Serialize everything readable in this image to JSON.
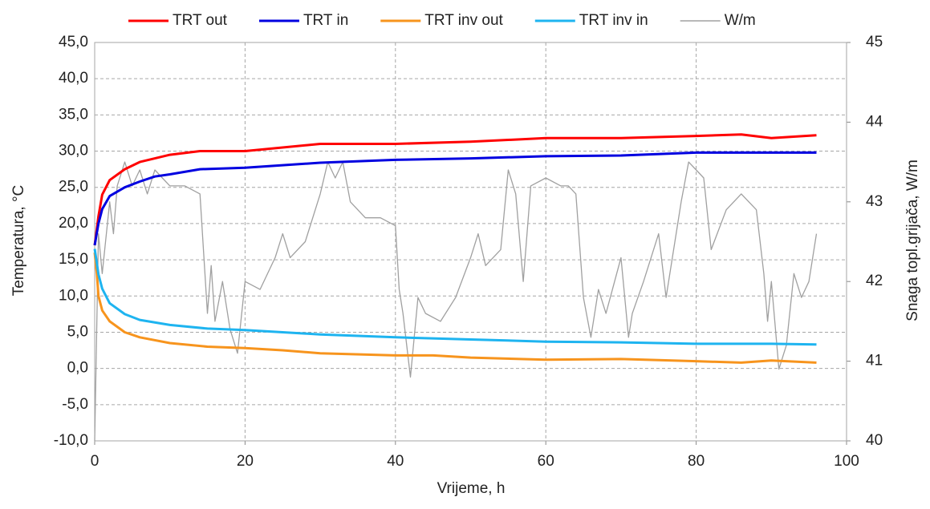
{
  "chart_data": {
    "type": "line",
    "xlabel": "Vrijeme, h",
    "ylabel": "Temperatura,  °C",
    "y2label": "Snaga topl.grijača, W/m",
    "xlim": [
      0,
      100
    ],
    "xticks": [
      0,
      20,
      40,
      60,
      80,
      100
    ],
    "ylim": [
      -10,
      45
    ],
    "yticks": [
      {
        "value": -10,
        "label": "-10,0"
      },
      {
        "value": -5,
        "label": "-5,0"
      },
      {
        "value": 0,
        "label": "0,0"
      },
      {
        "value": 5,
        "label": "5,0"
      },
      {
        "value": 10,
        "label": "10,0"
      },
      {
        "value": 15,
        "label": "15,0"
      },
      {
        "value": 20,
        "label": "20,0"
      },
      {
        "value": 25,
        "label": "25,0"
      },
      {
        "value": 30,
        "label": "30,0"
      },
      {
        "value": 35,
        "label": "35,0"
      },
      {
        "value": 40,
        "label": "40,0"
      },
      {
        "value": 45,
        "label": "45,0"
      }
    ],
    "y2lim": [
      40,
      45
    ],
    "y2ticks": [
      40,
      41,
      42,
      43,
      44,
      45
    ],
    "grid": true,
    "series": [
      {
        "name": "TRT out",
        "color": "#ff0000",
        "x": [
          0,
          0.5,
          1,
          2,
          4,
          6,
          8,
          10,
          14,
          20,
          30,
          40,
          50,
          60,
          70,
          80,
          86,
          90,
          96
        ],
        "values": [
          17,
          21,
          24,
          26,
          27.5,
          28.5,
          29,
          29.5,
          30,
          30,
          31,
          31,
          31.3,
          31.8,
          31.8,
          32.1,
          32.3,
          31.8,
          32.2
        ]
      },
      {
        "name": "TRT in",
        "color": "#0000e0",
        "x": [
          0,
          0.5,
          1,
          2,
          4,
          6,
          8,
          10,
          14,
          20,
          30,
          40,
          50,
          60,
          70,
          80,
          90,
          96
        ],
        "values": [
          17,
          20,
          22,
          23.8,
          25,
          25.8,
          26.5,
          26.8,
          27.5,
          27.7,
          28.4,
          28.8,
          29,
          29.3,
          29.4,
          29.8,
          29.8,
          29.8
        ]
      },
      {
        "name": "TRT inv out",
        "color": "#f7941d",
        "x": [
          0,
          0.3,
          0.5,
          1,
          2,
          4,
          6,
          10,
          15,
          20,
          25,
          30,
          40,
          45,
          50,
          60,
          70,
          80,
          86,
          90,
          96
        ],
        "values": [
          16,
          13,
          10,
          8,
          6.5,
          5,
          4.3,
          3.5,
          3,
          2.8,
          2.5,
          2.1,
          1.8,
          1.8,
          1.5,
          1.2,
          1.3,
          1,
          0.8,
          1.1,
          0.8
        ]
      },
      {
        "name": "TRT inv in",
        "color": "#1eb4f0",
        "x": [
          0,
          0.5,
          1,
          2,
          4,
          6,
          10,
          15,
          20,
          30,
          40,
          50,
          60,
          70,
          80,
          90,
          96
        ],
        "values": [
          16.5,
          13,
          11,
          9,
          7.5,
          6.7,
          6,
          5.5,
          5.3,
          4.7,
          4.3,
          4,
          3.7,
          3.6,
          3.4,
          3.4,
          3.3
        ]
      },
      {
        "name": "W/m",
        "color": "#a0a0a0",
        "axis": "y2",
        "x": [
          0,
          0.5,
          1,
          2,
          2.5,
          3,
          4,
          5,
          6,
          7,
          8,
          9,
          10,
          12,
          14,
          15,
          15.5,
          16,
          17,
          18,
          19,
          20,
          22,
          24,
          25,
          26,
          28,
          30,
          31,
          32,
          33,
          34,
          36,
          38,
          40,
          40.5,
          41,
          42,
          43,
          44,
          46,
          48,
          50,
          51,
          52,
          54,
          55,
          56,
          57,
          58,
          60,
          62,
          63,
          64,
          65,
          66,
          67,
          68,
          70,
          71,
          71.5,
          73,
          75,
          76,
          78,
          79,
          80,
          81,
          82,
          84,
          86,
          88,
          89,
          89.5,
          90,
          91,
          92,
          93,
          94,
          95,
          96
        ],
        "values": [
          40,
          42.6,
          42.1,
          43,
          42.6,
          43.2,
          43.5,
          43.2,
          43.4,
          43.1,
          43.4,
          43.3,
          43.2,
          43.2,
          43.1,
          41.6,
          42.2,
          41.5,
          42,
          41.4,
          41.1,
          42,
          41.9,
          42.3,
          42.6,
          42.3,
          42.5,
          43.1,
          43.5,
          43.3,
          43.5,
          43,
          42.8,
          42.8,
          42.7,
          41.9,
          41.6,
          40.8,
          41.8,
          41.6,
          41.5,
          41.8,
          42.3,
          42.6,
          42.2,
          42.4,
          43.4,
          43.1,
          42,
          43.2,
          43.3,
          43.2,
          43.2,
          43.1,
          41.8,
          41.3,
          41.9,
          41.6,
          42.3,
          41.3,
          41.6,
          42,
          42.6,
          41.8,
          43,
          43.5,
          43.4,
          43.3,
          42.4,
          42.9,
          43.1,
          42.9,
          42.1,
          41.5,
          42,
          40.9,
          41.2,
          42.1,
          41.8,
          42,
          42.6
        ]
      }
    ]
  }
}
